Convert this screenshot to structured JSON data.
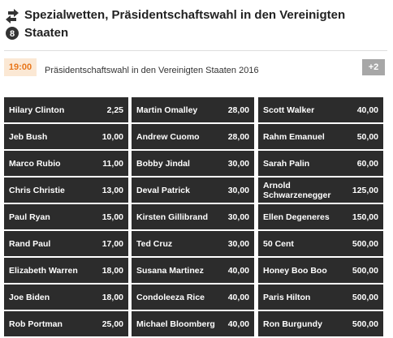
{
  "header": {
    "title": "Spezialwetten, Präsidentschaftswahl in den Vereinigten Staaten"
  },
  "event": {
    "time": "19:00",
    "name": "Präsidentschaftswahl in den Vereinigten Staaten 2016",
    "more": "+2"
  },
  "odds": {
    "rows": [
      [
        {
          "name": "Hilary Clinton",
          "odds": "2,25"
        },
        {
          "name": "Martin Omalley",
          "odds": "28,00"
        },
        {
          "name": "Scott Walker",
          "odds": "40,00"
        }
      ],
      [
        {
          "name": "Jeb Bush",
          "odds": "10,00"
        },
        {
          "name": "Andrew Cuomo",
          "odds": "28,00"
        },
        {
          "name": "Rahm Emanuel",
          "odds": "50,00"
        }
      ],
      [
        {
          "name": "Marco Rubio",
          "odds": "11,00"
        },
        {
          "name": "Bobby Jindal",
          "odds": "30,00"
        },
        {
          "name": "Sarah Palin",
          "odds": "60,00"
        }
      ],
      [
        {
          "name": "Chris Christie",
          "odds": "13,00"
        },
        {
          "name": "Deval Patrick",
          "odds": "30,00"
        },
        {
          "name": "Arnold Schwarzenegger",
          "odds": "125,00"
        }
      ],
      [
        {
          "name": "Paul Ryan",
          "odds": "15,00"
        },
        {
          "name": "Kirsten Gillibrand",
          "odds": "30,00"
        },
        {
          "name": "Ellen Degeneres",
          "odds": "150,00"
        }
      ],
      [
        {
          "name": "Rand Paul",
          "odds": "17,00"
        },
        {
          "name": "Ted Cruz",
          "odds": "30,00"
        },
        {
          "name": "50 Cent",
          "odds": "500,00"
        }
      ],
      [
        {
          "name": "Elizabeth Warren",
          "odds": "18,00"
        },
        {
          "name": "Susana Martinez",
          "odds": "40,00"
        },
        {
          "name": "Honey Boo Boo",
          "odds": "500,00"
        }
      ],
      [
        {
          "name": "Joe Biden",
          "odds": "18,00"
        },
        {
          "name": "Condoleeza Rice",
          "odds": "40,00"
        },
        {
          "name": "Paris Hilton",
          "odds": "500,00"
        }
      ],
      [
        {
          "name": "Rob Portman",
          "odds": "25,00"
        },
        {
          "name": "Michael Bloomberg",
          "odds": "40,00"
        },
        {
          "name": "Ron Burgundy",
          "odds": "500,00"
        }
      ]
    ]
  }
}
